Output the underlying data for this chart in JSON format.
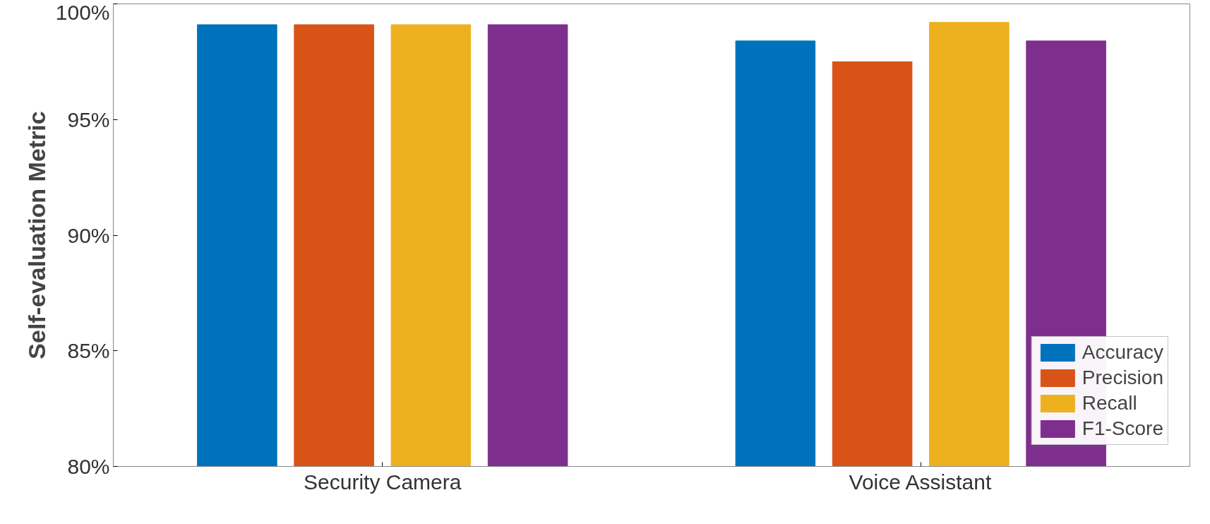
{
  "chart_data": {
    "type": "bar",
    "ylabel": "Self-evaluation Metric",
    "categories": [
      "Security Camera",
      "Voice Assistant"
    ],
    "series": [
      {
        "name": "Accuracy",
        "color": "#0072bd",
        "values": [
          99.1,
          98.4
        ]
      },
      {
        "name": "Precision",
        "color": "#d95319",
        "values": [
          99.1,
          97.5
        ]
      },
      {
        "name": "Recall",
        "color": "#edb120",
        "values": [
          99.1,
          99.2
        ]
      },
      {
        "name": "F1-Score",
        "color": "#7e2f8e",
        "values": [
          99.1,
          98.4
        ]
      }
    ],
    "ylim": [
      80,
      100
    ],
    "yticks": [
      {
        "value": 80,
        "label": "80%"
      },
      {
        "value": 85,
        "label": "85%"
      },
      {
        "value": 90,
        "label": "90%"
      },
      {
        "value": 95,
        "label": "95%"
      },
      {
        "value": 100,
        "label": "100%"
      }
    ],
    "grid": false,
    "legend": "bottom right"
  }
}
